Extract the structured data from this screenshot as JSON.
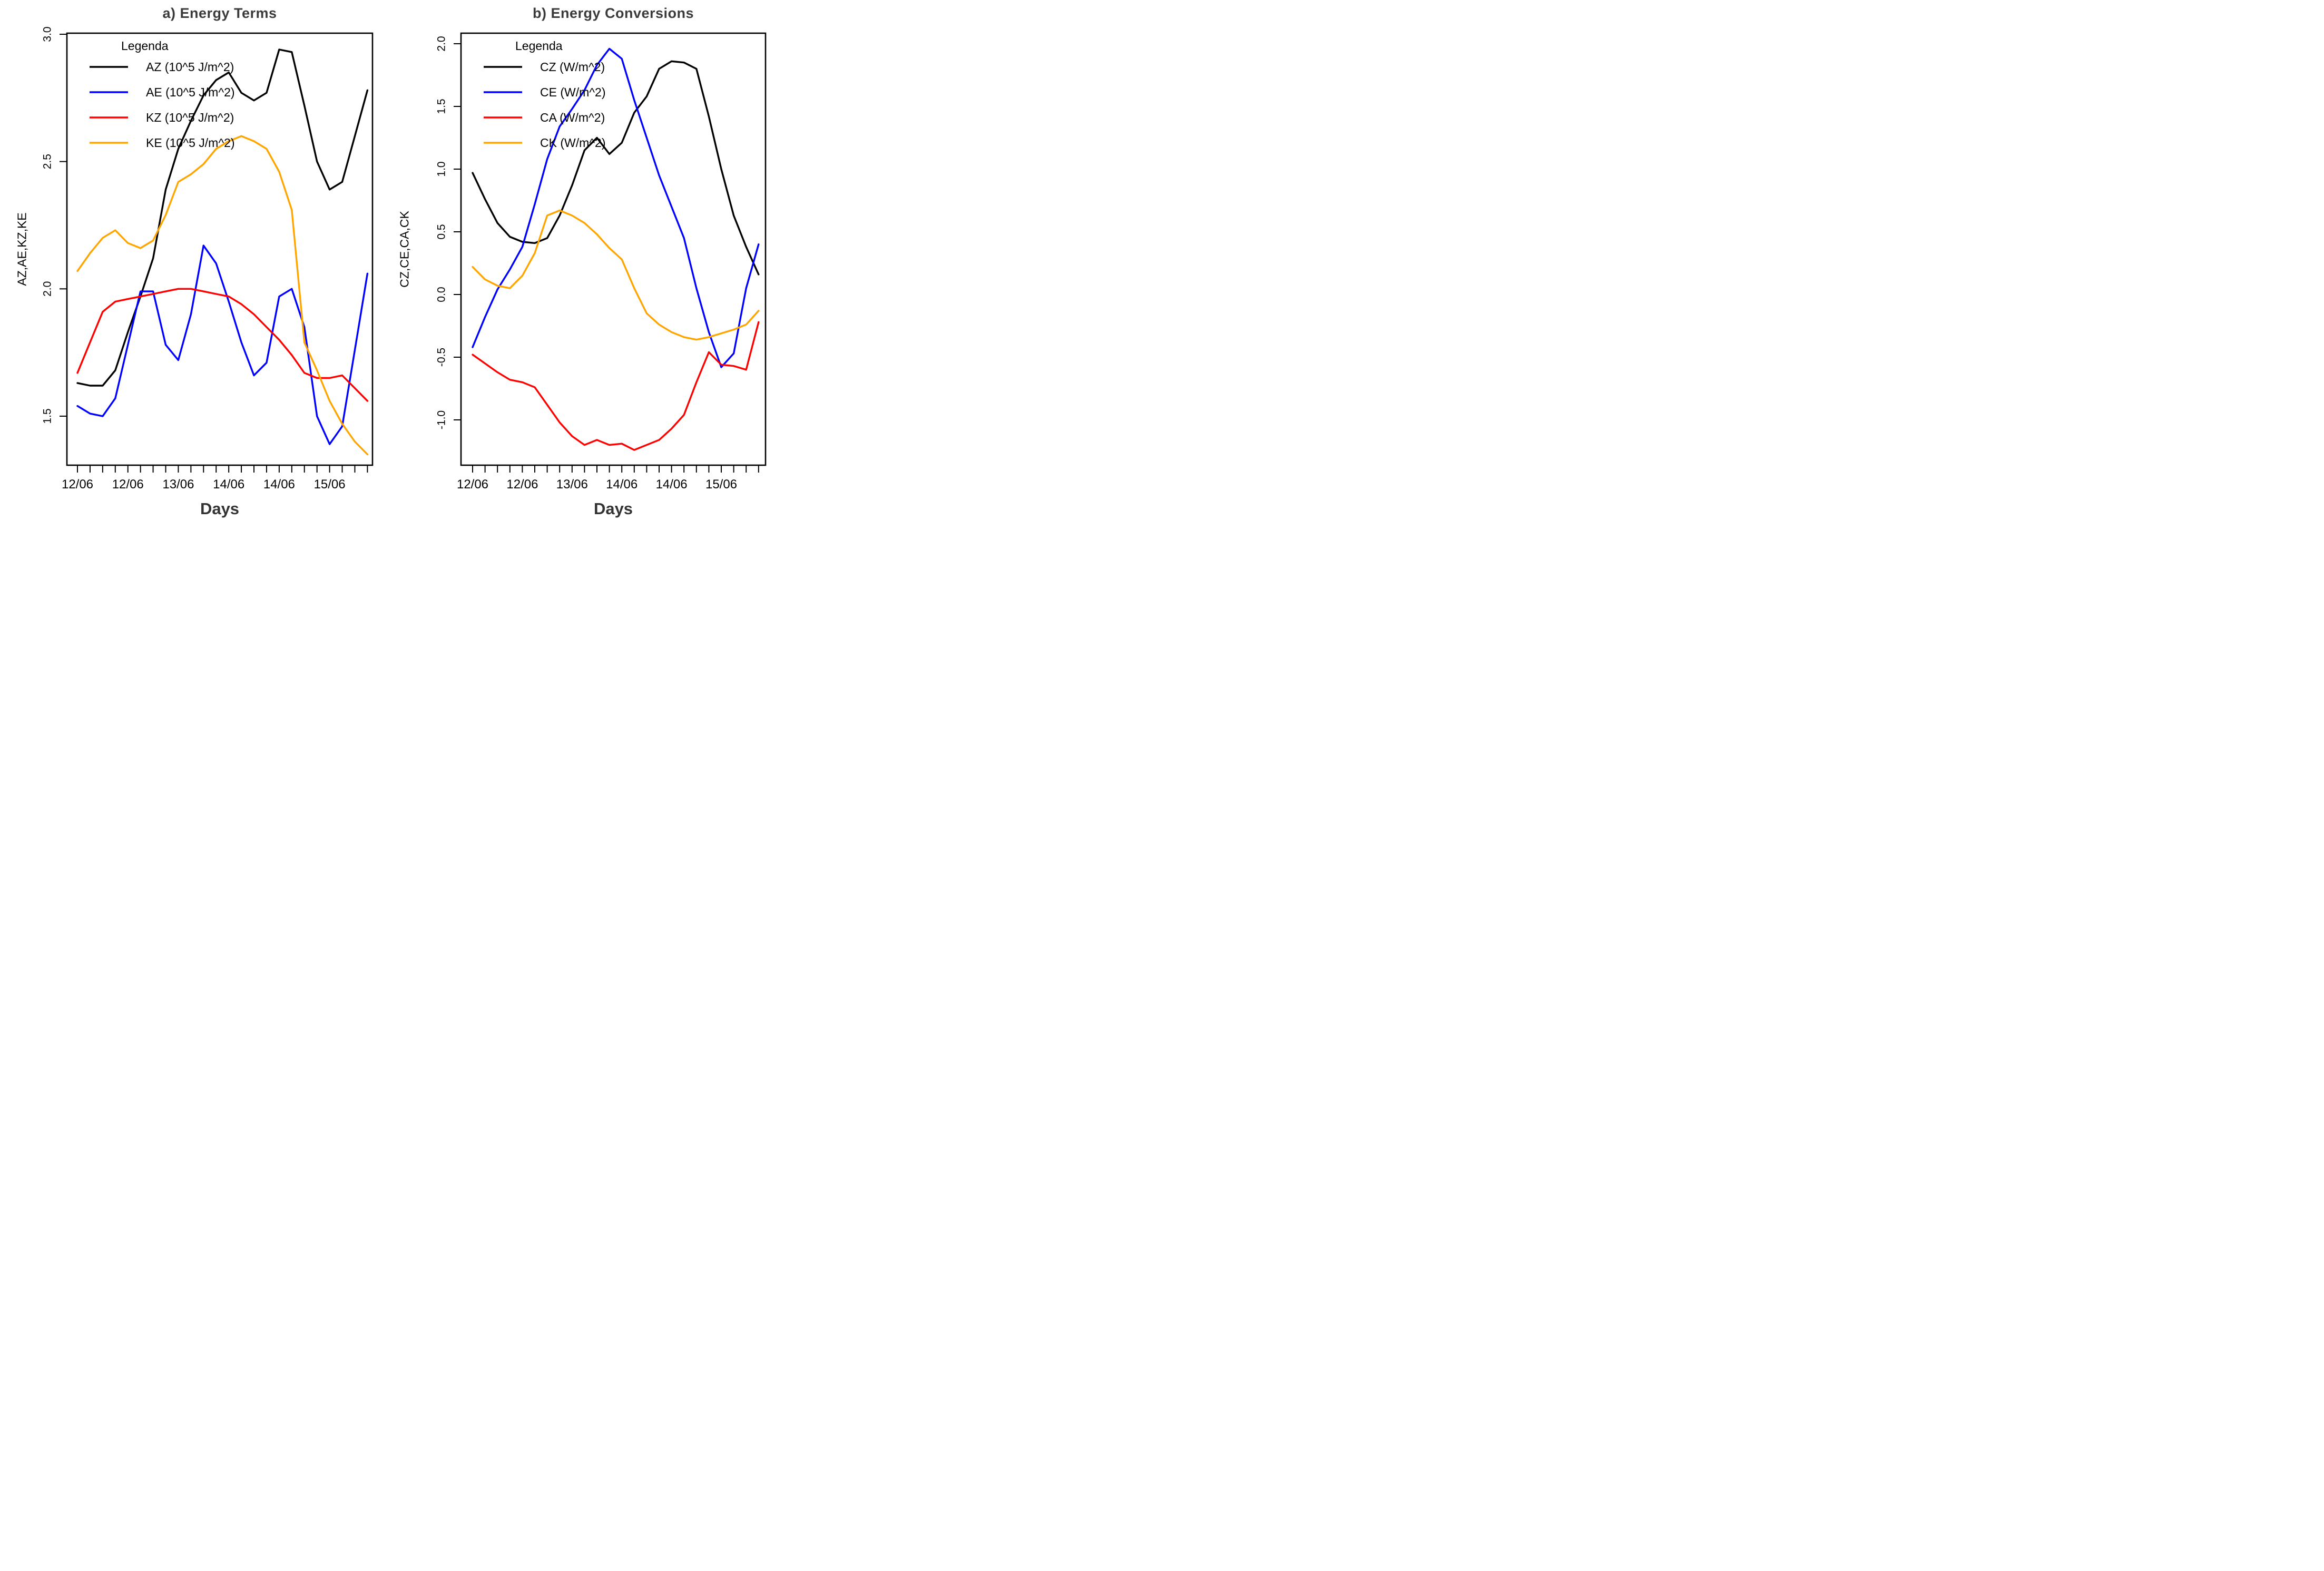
{
  "figure": {
    "background": "#ffffff",
    "axis_color": "#000000",
    "title_color": "#3a3a3a"
  },
  "chart_data": [
    {
      "type": "line",
      "panel": "a",
      "title": "a) Energy Terms",
      "xlabel": "Days",
      "ylabel": "AZ,AE,KZ,KE",
      "legend_title": "Legenda",
      "legend_position": "top-left",
      "grid": false,
      "x_tick_count": 24,
      "x_major_every": 4,
      "x_major_labels": [
        "12/06",
        "12/06",
        "13/06",
        "14/06",
        "14/06",
        "15/06"
      ],
      "ylim": [
        1.3,
        3.02
      ],
      "y_ticks": [
        {
          "v": 3.0,
          "label": "3.0"
        },
        {
          "v": 2.5,
          "label": "2.5"
        },
        {
          "v": 2.0,
          "label": "2.0"
        },
        {
          "v": 1.5,
          "label": "1.5"
        }
      ],
      "series": [
        {
          "name": "AZ",
          "label": "AZ (10^5 J/m^2)",
          "color": "#000000",
          "values": [
            1.63,
            1.62,
            1.62,
            1.68,
            1.83,
            1.97,
            2.12,
            2.39,
            2.55,
            2.66,
            2.76,
            2.82,
            2.85,
            2.77,
            2.74,
            2.77,
            2.94,
            2.93,
            2.72,
            2.5,
            2.39,
            2.42,
            2.6,
            2.78
          ]
        },
        {
          "name": "AE",
          "label": "AE (10^5 J/m^2)",
          "color": "#0000ff",
          "values": [
            1.54,
            1.51,
            1.5,
            1.57,
            1.78,
            1.99,
            1.99,
            1.78,
            1.72,
            1.9,
            2.17,
            2.1,
            1.95,
            1.79,
            1.66,
            1.71,
            1.97,
            2.0,
            1.85,
            1.5,
            1.39,
            1.46,
            1.76,
            2.06
          ]
        },
        {
          "name": "KZ",
          "label": "KZ (10^5 J/m^2)",
          "color": "#ff0000",
          "values": [
            1.67,
            1.79,
            1.91,
            1.95,
            1.96,
            1.97,
            1.98,
            1.99,
            2.0,
            2.0,
            1.99,
            1.98,
            1.97,
            1.94,
            1.9,
            1.85,
            1.8,
            1.74,
            1.67,
            1.65,
            1.65,
            1.66,
            1.61,
            1.56
          ]
        },
        {
          "name": "KE",
          "label": "KE (10^5 J/m^2)",
          "color": "#ffa500",
          "values": [
            2.07,
            2.14,
            2.2,
            2.23,
            2.18,
            2.16,
            2.19,
            2.29,
            2.42,
            2.45,
            2.49,
            2.55,
            2.58,
            2.6,
            2.58,
            2.55,
            2.46,
            2.31,
            1.79,
            1.68,
            1.56,
            1.47,
            1.4,
            1.35
          ]
        }
      ]
    },
    {
      "type": "line",
      "panel": "b",
      "title": "b) Energy Conversions",
      "xlabel": "Days",
      "ylabel": "CZ,CE,CA,CK",
      "legend_title": "Legenda",
      "legend_position": "top-left",
      "grid": false,
      "x_tick_count": 24,
      "x_major_every": 4,
      "x_major_labels": [
        "12/06",
        "12/06",
        "13/06",
        "14/06",
        "14/06",
        "15/06"
      ],
      "ylim": [
        -1.36,
        2.08
      ],
      "y_ticks": [
        {
          "v": 2.0,
          "label": "2.0"
        },
        {
          "v": 1.5,
          "label": "1.5"
        },
        {
          "v": 1.0,
          "label": "1.0"
        },
        {
          "v": 0.5,
          "label": "0.5"
        },
        {
          "v": 0.0,
          "label": "0.0"
        },
        {
          "v": -0.5,
          "label": "-0.5"
        },
        {
          "v": -1.0,
          "label": "-1.0"
        }
      ],
      "series": [
        {
          "name": "CZ",
          "label": "CZ (W/m^2)",
          "color": "#000000",
          "values": [
            0.97,
            0.76,
            0.57,
            0.46,
            0.42,
            0.41,
            0.45,
            0.63,
            0.87,
            1.15,
            1.25,
            1.12,
            1.21,
            1.45,
            1.58,
            1.8,
            1.86,
            1.85,
            1.8,
            1.42,
            1.0,
            0.63,
            0.38,
            0.16
          ]
        },
        {
          "name": "CE",
          "label": "CE (W/m^2)",
          "color": "#0000ff",
          "values": [
            -0.42,
            -0.18,
            0.04,
            0.2,
            0.38,
            0.72,
            1.08,
            1.34,
            1.48,
            1.63,
            1.83,
            1.96,
            1.88,
            1.55,
            1.25,
            0.95,
            0.7,
            0.45,
            0.05,
            -0.3,
            -0.58,
            -0.47,
            0.05,
            0.4
          ]
        },
        {
          "name": "CA",
          "label": "CA (W/m^2)",
          "color": "#ff0000",
          "values": [
            -0.48,
            -0.55,
            -0.62,
            -0.68,
            -0.7,
            -0.74,
            -0.88,
            -1.02,
            -1.13,
            -1.2,
            -1.16,
            -1.2,
            -1.19,
            -1.24,
            -1.2,
            -1.16,
            -1.07,
            -0.96,
            -0.7,
            -0.46,
            -0.56,
            -0.57,
            -0.6,
            -0.22
          ]
        },
        {
          "name": "CK",
          "label": "CK (W/m^2)",
          "color": "#ffa500",
          "values": [
            0.22,
            0.12,
            0.07,
            0.05,
            0.15,
            0.33,
            0.63,
            0.67,
            0.63,
            0.57,
            0.48,
            0.37,
            0.28,
            0.05,
            -0.15,
            -0.24,
            -0.3,
            -0.34,
            -0.36,
            -0.34,
            -0.31,
            -0.28,
            -0.24,
            -0.13
          ]
        }
      ]
    }
  ]
}
